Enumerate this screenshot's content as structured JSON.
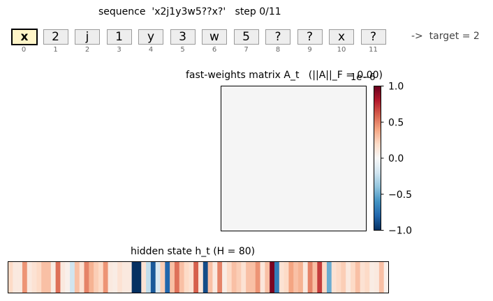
{
  "header": {
    "sequence_title": "sequence  'x2j1y3w5??x?'   step 0/11"
  },
  "tokens": [
    {
      "char": "x",
      "index": "0",
      "active": true
    },
    {
      "char": "2",
      "index": "1",
      "active": false
    },
    {
      "char": "j",
      "index": "2",
      "active": false
    },
    {
      "char": "1",
      "index": "3",
      "active": false
    },
    {
      "char": "y",
      "index": "4",
      "active": false
    },
    {
      "char": "3",
      "index": "5",
      "active": false
    },
    {
      "char": "w",
      "index": "6",
      "active": false
    },
    {
      "char": "5",
      "index": "7",
      "active": false
    },
    {
      "char": "?",
      "index": "8",
      "active": false
    },
    {
      "char": "?",
      "index": "9",
      "active": false
    },
    {
      "char": "x",
      "index": "10",
      "active": false
    },
    {
      "char": "?",
      "index": "11",
      "active": false
    }
  ],
  "target_label": "->  target = 2",
  "colors": {
    "active_token_fill": "#fff5c8",
    "token_fill": "#eeeeee",
    "colormap": "RdBu_r"
  },
  "chart_data": [
    {
      "type": "heatmap",
      "title": "fast-weights matrix A_t   (||A||_F = 0.00)",
      "scale_label": "1e−6",
      "matrix_uniform_value": 0.0,
      "colorbar": {
        "range": [
          -1.0,
          1.0
        ],
        "ticks": [
          "1.0",
          "0.5",
          "0.0",
          "−0.5",
          "−1.0"
        ],
        "tick_values": [
          1.0,
          0.5,
          0.0,
          -0.5,
          -1.0
        ]
      }
    },
    {
      "type": "heatmap",
      "title": "hidden state h_t (H = 80)",
      "values": [
        0.2,
        0.1,
        0.1,
        0.45,
        0.1,
        0.15,
        0.2,
        0.3,
        0.3,
        0.08,
        0.55,
        0.1,
        0.05,
        -0.2,
        0.3,
        0.15,
        0.5,
        0.35,
        0.25,
        0.2,
        0.45,
        0.1,
        0.08,
        0.15,
        0.1,
        0.1,
        -1.0,
        -1.0,
        0.15,
        -0.25,
        -0.85,
        -0.15,
        0.25,
        -0.8,
        0.3,
        0.55,
        0.3,
        0.2,
        0.15,
        0.6,
        0.12,
        -0.9,
        0.3,
        0.1,
        0.5,
        0.08,
        0.2,
        0.3,
        0.25,
        0.15,
        0.3,
        0.3,
        0.45,
        0.12,
        0.3,
        0.95,
        -0.7,
        0.15,
        0.2,
        0.4,
        0.3,
        0.35,
        0.1,
        0.5,
        0.3,
        0.7,
        0.2,
        -0.5,
        0.15,
        0.2,
        0.25,
        0.1,
        0.2,
        0.3,
        0.15,
        0.2,
        0.08,
        0.1,
        0.3,
        0.05
      ],
      "color_range": [
        -1.0,
        1.0
      ]
    }
  ]
}
